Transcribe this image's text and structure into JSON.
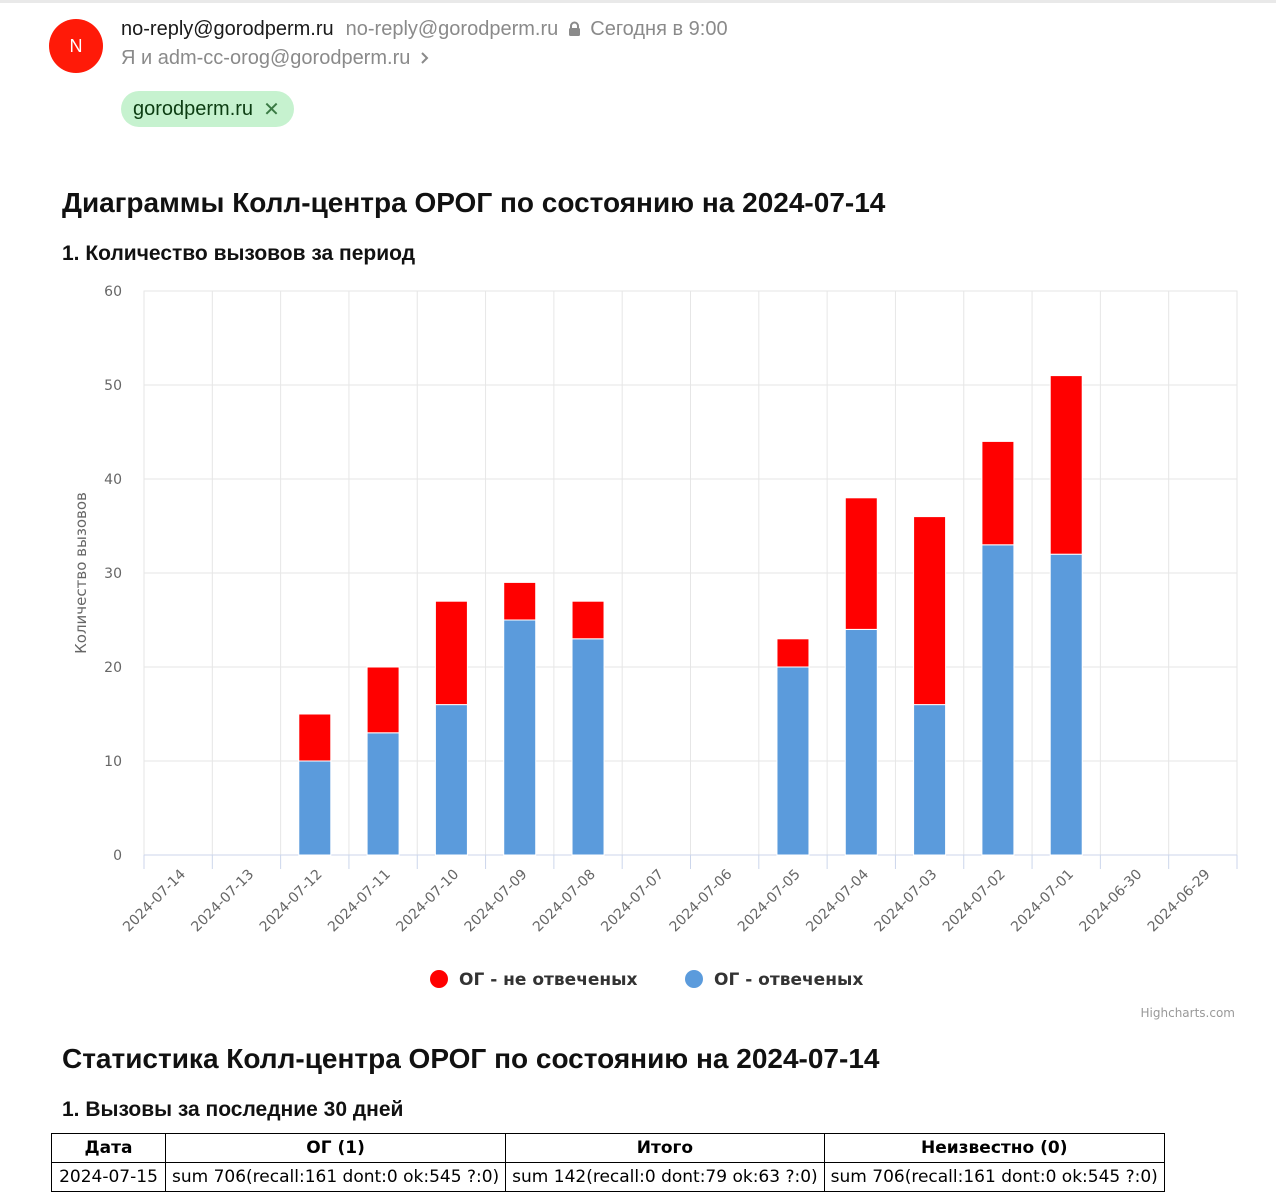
{
  "header": {
    "avatar_letter": "N",
    "from_name": "no-reply@gorodperm.ru",
    "from_email": "no-reply@gorodperm.ru",
    "date": "Сегодня в 9:00",
    "recipients": "Я и adm-cc-orog@gorodperm.ru",
    "tag_label": "gorodperm.ru",
    "avatar_color": "#ff1a08",
    "tag_color": "#c6f2cf"
  },
  "content": {
    "diagrams_title": "Диаграммы Колл-центра ОРОГ по состоянию на 2024-07-14",
    "chart1_title": "1. Количество вызовов за период",
    "stats_title": "Статистика Колл-центра ОРОГ по состоянию на 2024-07-14",
    "table1_title": "1. Вызовы за последние 30 дней"
  },
  "chart_data": {
    "type": "bar",
    "stacked": true,
    "categories": [
      "2024-07-14",
      "2024-07-13",
      "2024-07-12",
      "2024-07-11",
      "2024-07-10",
      "2024-07-09",
      "2024-07-08",
      "2024-07-07",
      "2024-07-06",
      "2024-07-05",
      "2024-07-04",
      "2024-07-03",
      "2024-07-02",
      "2024-07-01",
      "2024-06-30",
      "2024-06-29"
    ],
    "series": [
      {
        "name": "ОГ - не отвеченых",
        "color": "#ff0000",
        "values": [
          0,
          0,
          5,
          7,
          11,
          4,
          4,
          0,
          0,
          3,
          14,
          20,
          11,
          19,
          0,
          0
        ]
      },
      {
        "name": "ОГ - отвеченых",
        "color": "#5b9bdc",
        "values": [
          0,
          0,
          10,
          13,
          16,
          25,
          23,
          0,
          0,
          20,
          24,
          16,
          33,
          32,
          0,
          0
        ]
      }
    ],
    "ylabel": "Количество вызовов",
    "xlabel": "",
    "ylim": [
      0,
      60
    ],
    "yticks": [
      0,
      10,
      20,
      30,
      40,
      50,
      60
    ],
    "grid": true,
    "legend": "bottom",
    "credits": "Highcharts.com"
  },
  "table": {
    "headers": [
      "Дата",
      "ОГ (1)",
      "Итого",
      "Неизвестно (0)"
    ],
    "rows": [
      [
        "2024-07-15",
        "sum 706(recall:161 dont:0 ok:545 ?:0)",
        "sum 142(recall:0 dont:79 ok:63 ?:0)",
        "sum 706(recall:161 dont:0 ok:545 ?:0)"
      ]
    ]
  }
}
